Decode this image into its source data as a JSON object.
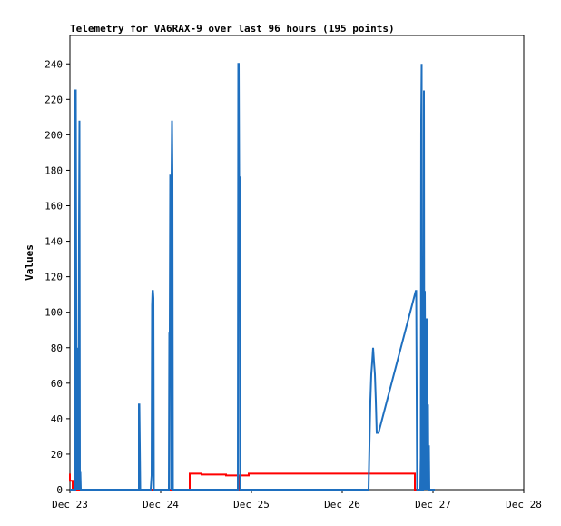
{
  "chart_data": {
    "type": "line",
    "title": "Telemetry for VA6RAX-9 over last 96 hours (195 points)",
    "xlabel": "",
    "ylabel": "Values",
    "x_ticks": [
      "Dec 23",
      "Dec 24",
      "Dec 25",
      "Dec 26",
      "Dec 27",
      "Dec 28"
    ],
    "xlim": [
      23.0,
      28.0
    ],
    "y_ticks": [
      0,
      20,
      40,
      60,
      80,
      100,
      120,
      140,
      160,
      180,
      200,
      220,
      240
    ],
    "ylim": [
      0,
      256
    ],
    "grid": false,
    "legend": "none",
    "series": [
      {
        "color": "#ff0000",
        "x": [
          23.0,
          23.0,
          23.03,
          23.03,
          23.07,
          23.07,
          23.07,
          23.08,
          23.08,
          24.32,
          24.32,
          24.45,
          24.45,
          24.72,
          24.72,
          24.86,
          24.86,
          24.88,
          24.88,
          24.97,
          24.97,
          26.8,
          26.8,
          26.85
        ],
        "y": [
          9,
          5,
          5,
          0,
          0,
          9,
          9,
          9,
          0,
          0,
          9,
          9,
          8.5,
          8.5,
          8,
          8,
          0,
          0,
          8,
          8,
          9,
          9,
          0,
          0
        ]
      },
      {
        "color": "#1e6fbf",
        "x": [
          23.0,
          23.06,
          23.06,
          23.065,
          23.07,
          23.075,
          23.08,
          23.085,
          23.09,
          23.095,
          23.1,
          23.105,
          23.11,
          23.115,
          23.12,
          23.125,
          23.13,
          23.135,
          23.14,
          23.145,
          23.15,
          23.76,
          23.76,
          23.765,
          23.77,
          23.775,
          23.78,
          23.89,
          23.9,
          23.905,
          23.91,
          23.915,
          23.92,
          23.925,
          23.93,
          24.09,
          24.095,
          24.1,
          24.105,
          24.11,
          24.115,
          24.12,
          24.125,
          24.13,
          24.135,
          24.14,
          24.145,
          24.15,
          24.85,
          24.855,
          24.86,
          24.865,
          24.87,
          24.875,
          24.88,
          26.29,
          26.3,
          26.31,
          26.32,
          26.33,
          26.34,
          26.35,
          26.36,
          26.37,
          26.38,
          26.4,
          26.81,
          26.815,
          26.82,
          26.825,
          26.83,
          26.85,
          26.86,
          26.865,
          26.87,
          26.875,
          26.88,
          26.885,
          26.89,
          26.895,
          26.9,
          26.905,
          26.91,
          26.92,
          26.925,
          26.93,
          26.935,
          26.94,
          26.945,
          26.95,
          26.955,
          26.96,
          26.965,
          26.97,
          26.975,
          26.98,
          26.985,
          26.99,
          26.995,
          27.0,
          27.005,
          27.01,
          27.02
        ],
        "y": [
          0,
          0,
          225,
          225,
          112,
          0,
          80,
          0,
          72,
          0,
          145,
          208,
          0,
          10,
          0,
          0,
          0,
          0,
          0,
          0,
          0,
          0,
          48,
          48,
          25,
          0,
          0,
          0,
          8,
          104,
          112,
          112,
          108,
          0,
          0,
          0,
          88,
          88,
          177,
          177,
          0,
          177,
          208,
          177,
          0,
          0,
          0,
          0,
          0,
          240,
          240,
          176,
          176,
          0,
          0,
          0,
          25,
          50,
          65,
          72,
          80,
          72,
          65,
          50,
          32,
          32,
          112,
          112,
          56,
          0,
          0,
          0,
          0,
          18,
          208,
          240,
          0,
          0,
          0,
          48,
          225,
          0,
          112,
          0,
          72,
          96,
          96,
          0,
          48,
          0,
          25,
          0,
          0,
          0,
          0,
          0,
          0,
          0,
          0,
          0,
          0,
          0,
          0
        ]
      }
    ]
  }
}
